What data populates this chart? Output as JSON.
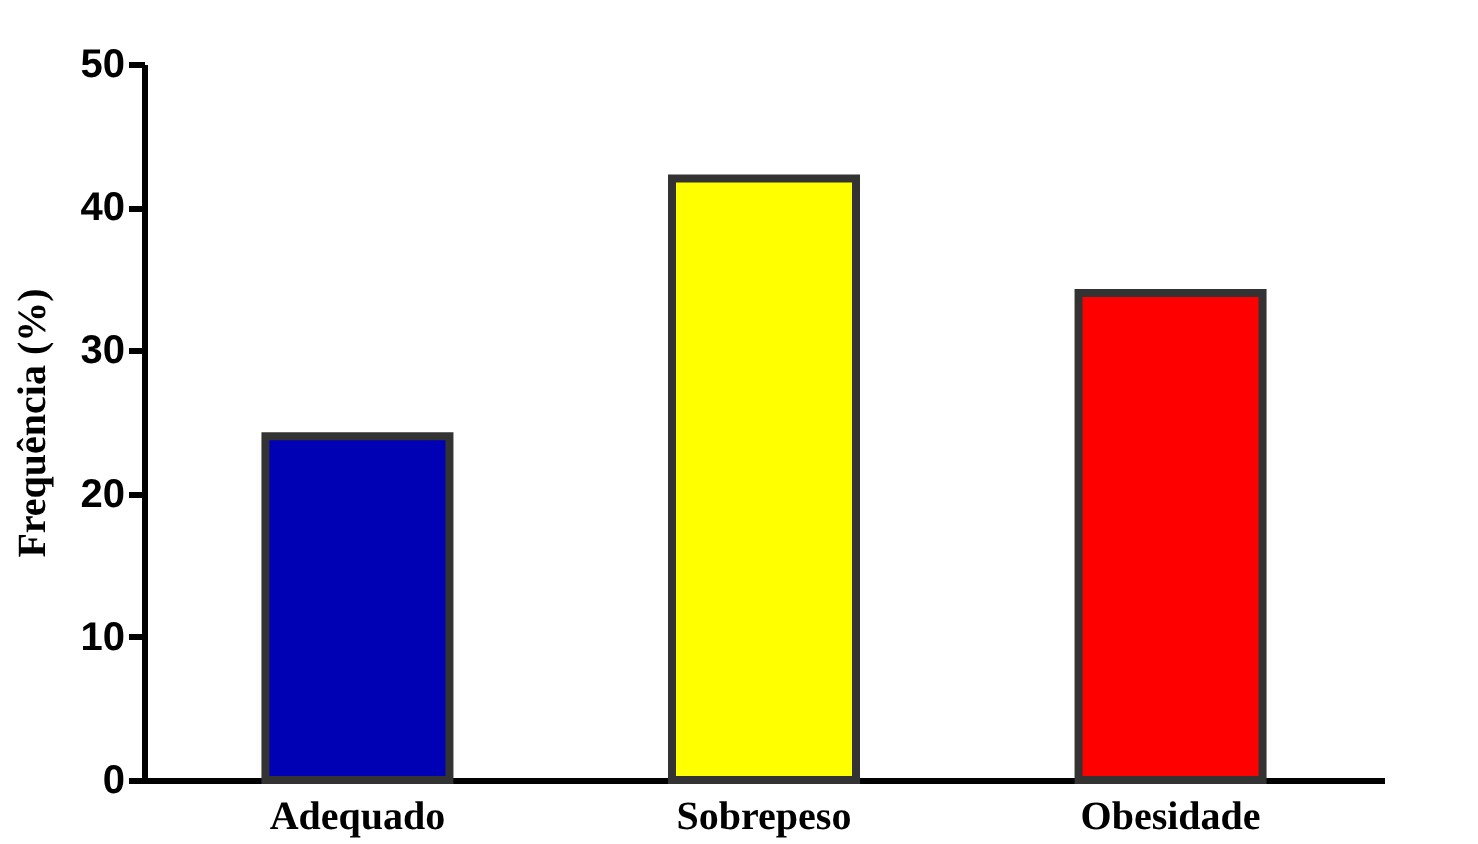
{
  "chart_data": {
    "type": "bar",
    "categories": [
      "Adequado",
      "Sobrepeso",
      "Obesidade"
    ],
    "values": [
      24,
      42,
      34
    ],
    "colors": [
      "#0000b4",
      "#ffff00",
      "#ff0000"
    ],
    "ylabel": "Frequência (%)",
    "ylim": [
      0,
      50
    ],
    "yticks": [
      0,
      10,
      20,
      30,
      40,
      50
    ],
    "grid": false
  }
}
